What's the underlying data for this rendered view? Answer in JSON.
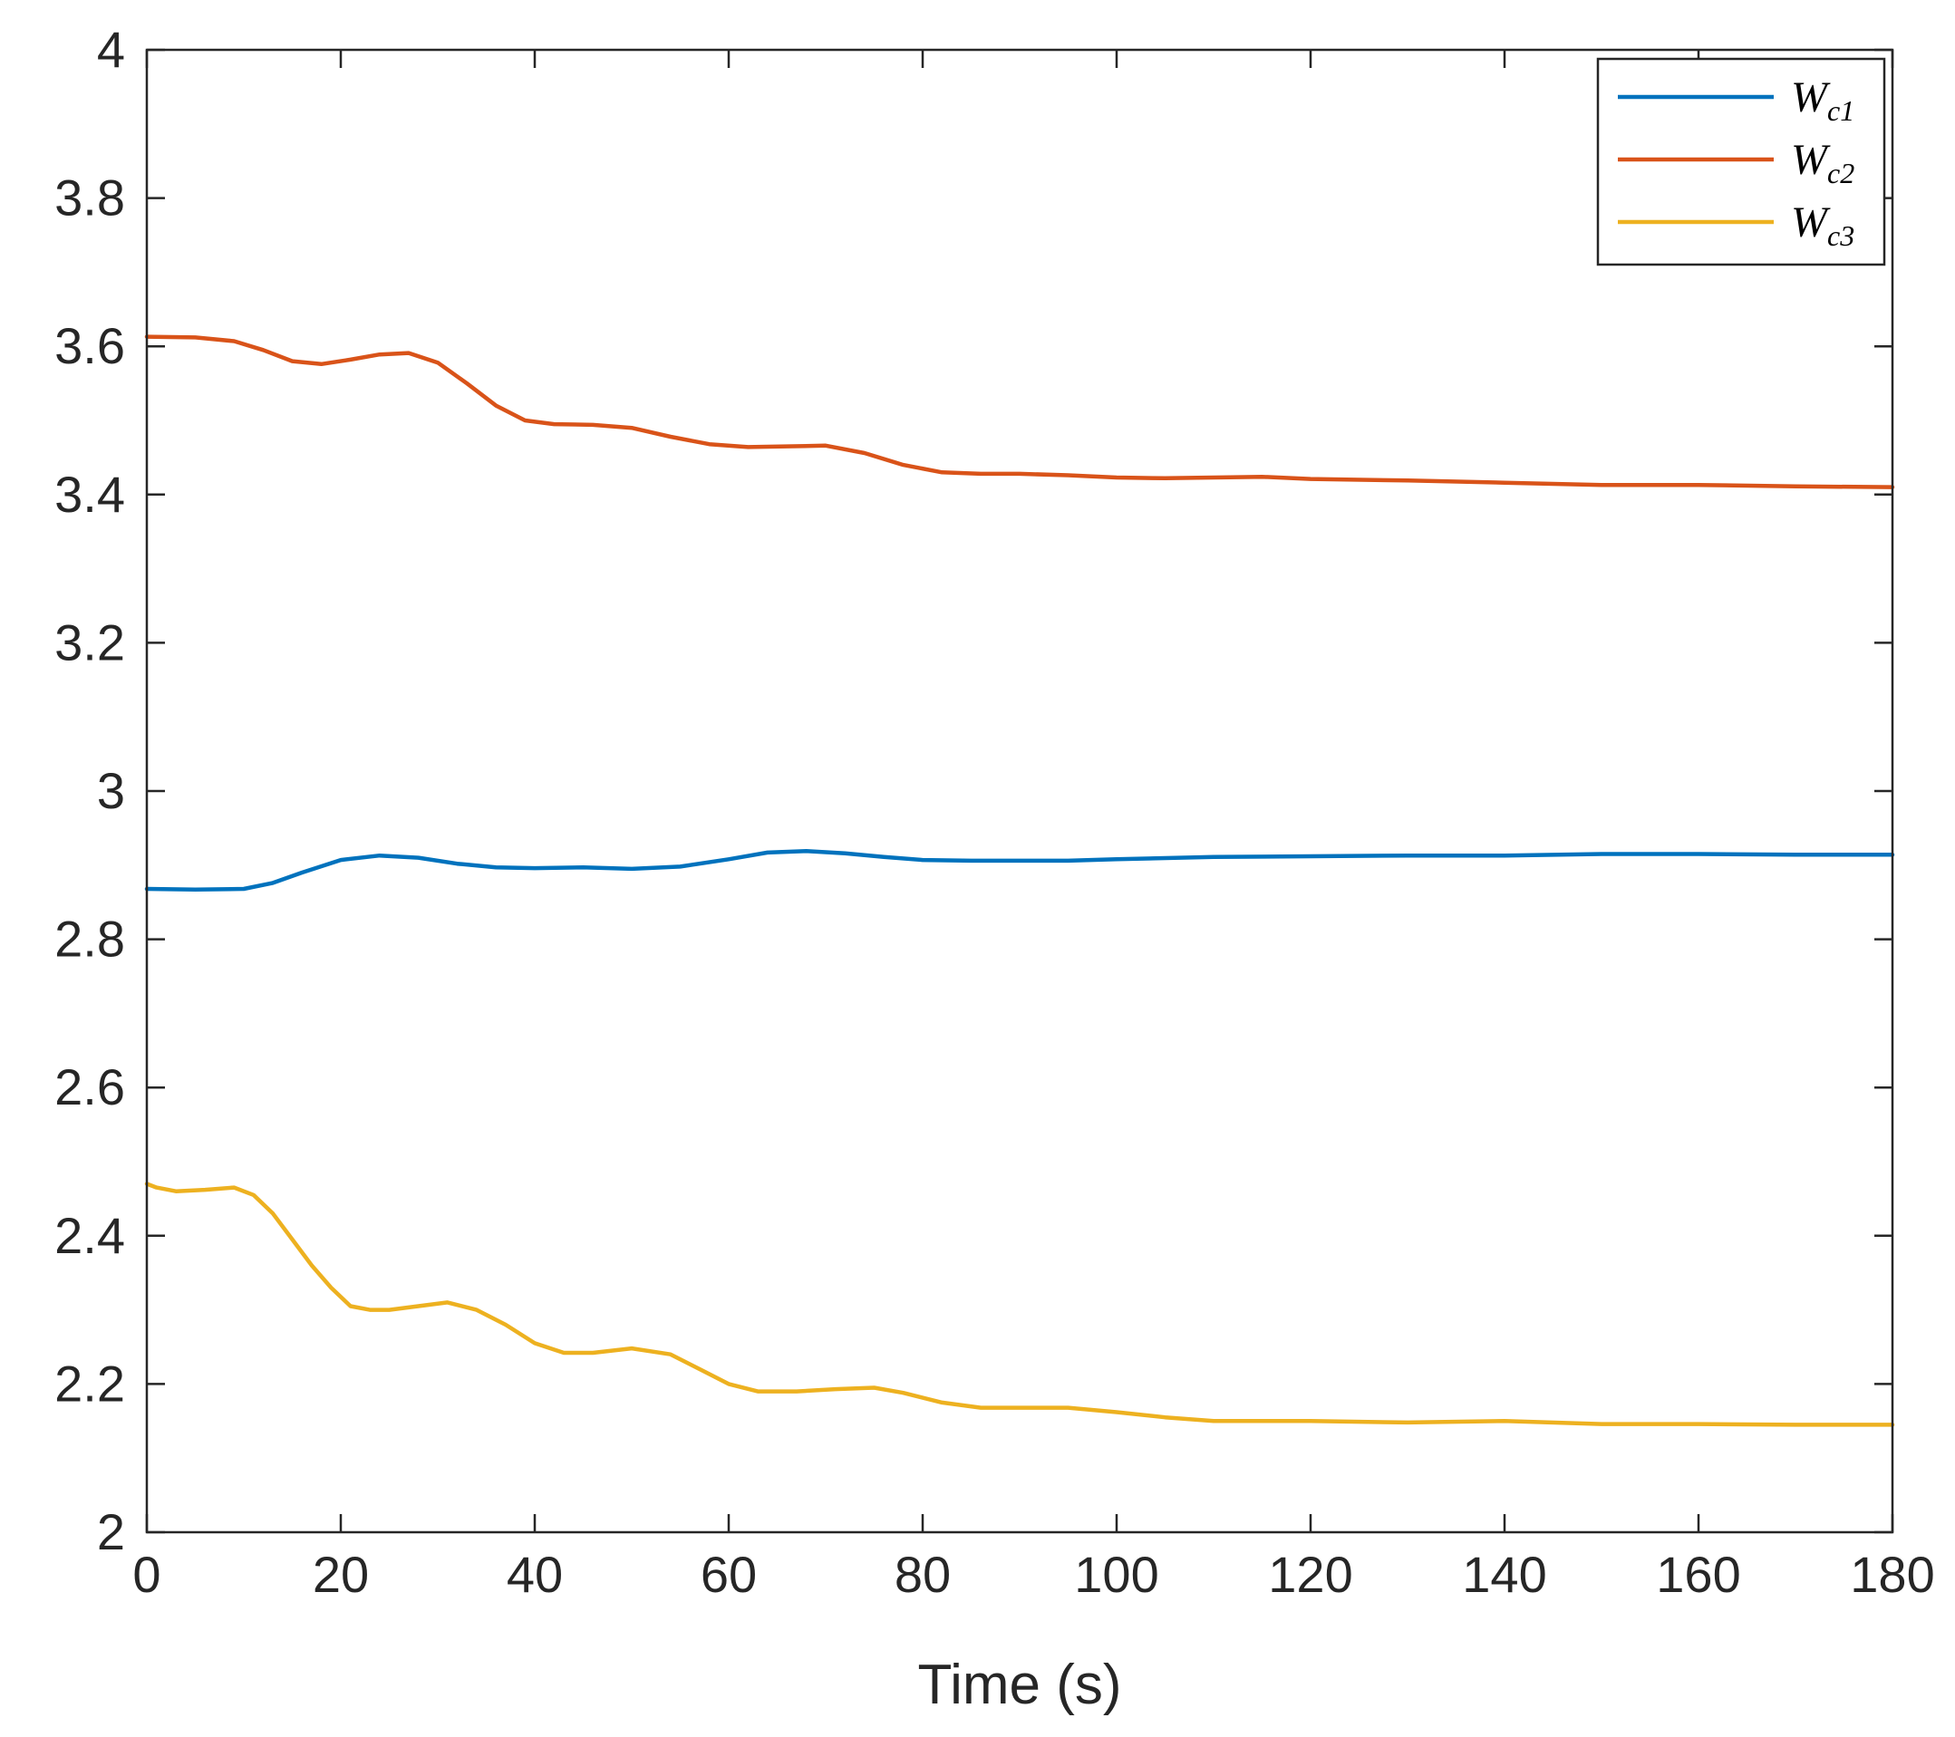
{
  "chart_data": {
    "type": "line",
    "title": "",
    "xlabel": "Time (s)",
    "ylabel": "",
    "xlim": [
      0,
      180
    ],
    "ylim": [
      2,
      4
    ],
    "xticks": [
      0,
      20,
      40,
      60,
      80,
      100,
      120,
      140,
      160,
      180
    ],
    "yticks": [
      2,
      2.2,
      2.4,
      2.6,
      2.8,
      3,
      3.2,
      3.4,
      3.6,
      3.8,
      4
    ],
    "xtick_labels": [
      "0",
      "20",
      "40",
      "60",
      "80",
      "100",
      "120",
      "140",
      "160",
      "180"
    ],
    "ytick_labels": [
      "2",
      "2.2",
      "2.4",
      "2.6",
      "2.8",
      "3",
      "3.2",
      "3.4",
      "3.6",
      "3.8",
      "4"
    ],
    "grid": false,
    "legend_position": "top-right",
    "series": [
      {
        "name": "W",
        "name_sub": "c1",
        "color": "#0072BD",
        "x": [
          0,
          5,
          10,
          13,
          16,
          20,
          24,
          28,
          32,
          36,
          40,
          45,
          50,
          55,
          60,
          64,
          68,
          72,
          76,
          80,
          85,
          90,
          95,
          100,
          110,
          120,
          130,
          140,
          150,
          160,
          170,
          180
        ],
        "y": [
          2.868,
          2.867,
          2.868,
          2.876,
          2.89,
          2.907,
          2.913,
          2.91,
          2.902,
          2.897,
          2.896,
          2.897,
          2.895,
          2.898,
          2.908,
          2.917,
          2.919,
          2.916,
          2.911,
          2.907,
          2.906,
          2.906,
          2.906,
          2.908,
          2.911,
          2.912,
          2.913,
          2.913,
          2.915,
          2.915,
          2.914,
          2.914
        ]
      },
      {
        "name": "W",
        "name_sub": "c2",
        "color": "#D95319",
        "x": [
          0,
          5,
          9,
          12,
          15,
          18,
          21,
          24,
          27,
          30,
          33,
          36,
          39,
          42,
          46,
          50,
          54,
          58,
          62,
          66,
          70,
          74,
          78,
          82,
          86,
          90,
          95,
          100,
          105,
          110,
          115,
          120,
          130,
          140,
          150,
          160,
          170,
          180
        ],
        "y": [
          3.613,
          3.612,
          3.607,
          3.595,
          3.58,
          3.576,
          3.582,
          3.589,
          3.591,
          3.578,
          3.55,
          3.52,
          3.5,
          3.495,
          3.494,
          3.49,
          3.478,
          3.468,
          3.464,
          3.465,
          3.466,
          3.456,
          3.44,
          3.43,
          3.428,
          3.428,
          3.426,
          3.423,
          3.422,
          3.423,
          3.424,
          3.421,
          3.419,
          3.416,
          3.413,
          3.413,
          3.411,
          3.41
        ]
      },
      {
        "name": "W",
        "name_sub": "c3",
        "color": "#EDB120",
        "x": [
          0,
          1,
          3,
          6,
          9,
          11,
          13,
          15,
          17,
          19,
          21,
          23,
          25,
          28,
          31,
          34,
          37,
          40,
          43,
          46,
          50,
          54,
          57,
          60,
          63,
          67,
          71,
          75,
          78,
          82,
          86,
          90,
          95,
          100,
          105,
          110,
          115,
          120,
          130,
          140,
          150,
          160,
          170,
          180
        ],
        "y": [
          2.47,
          2.465,
          2.46,
          2.462,
          2.465,
          2.455,
          2.43,
          2.395,
          2.36,
          2.33,
          2.305,
          2.3,
          2.3,
          2.305,
          2.31,
          2.3,
          2.28,
          2.255,
          2.242,
          2.242,
          2.248,
          2.24,
          2.22,
          2.2,
          2.19,
          2.19,
          2.193,
          2.195,
          2.188,
          2.175,
          2.168,
          2.168,
          2.168,
          2.162,
          2.155,
          2.15,
          2.15,
          2.15,
          2.148,
          2.15,
          2.146,
          2.146,
          2.145,
          2.145
        ]
      }
    ]
  }
}
